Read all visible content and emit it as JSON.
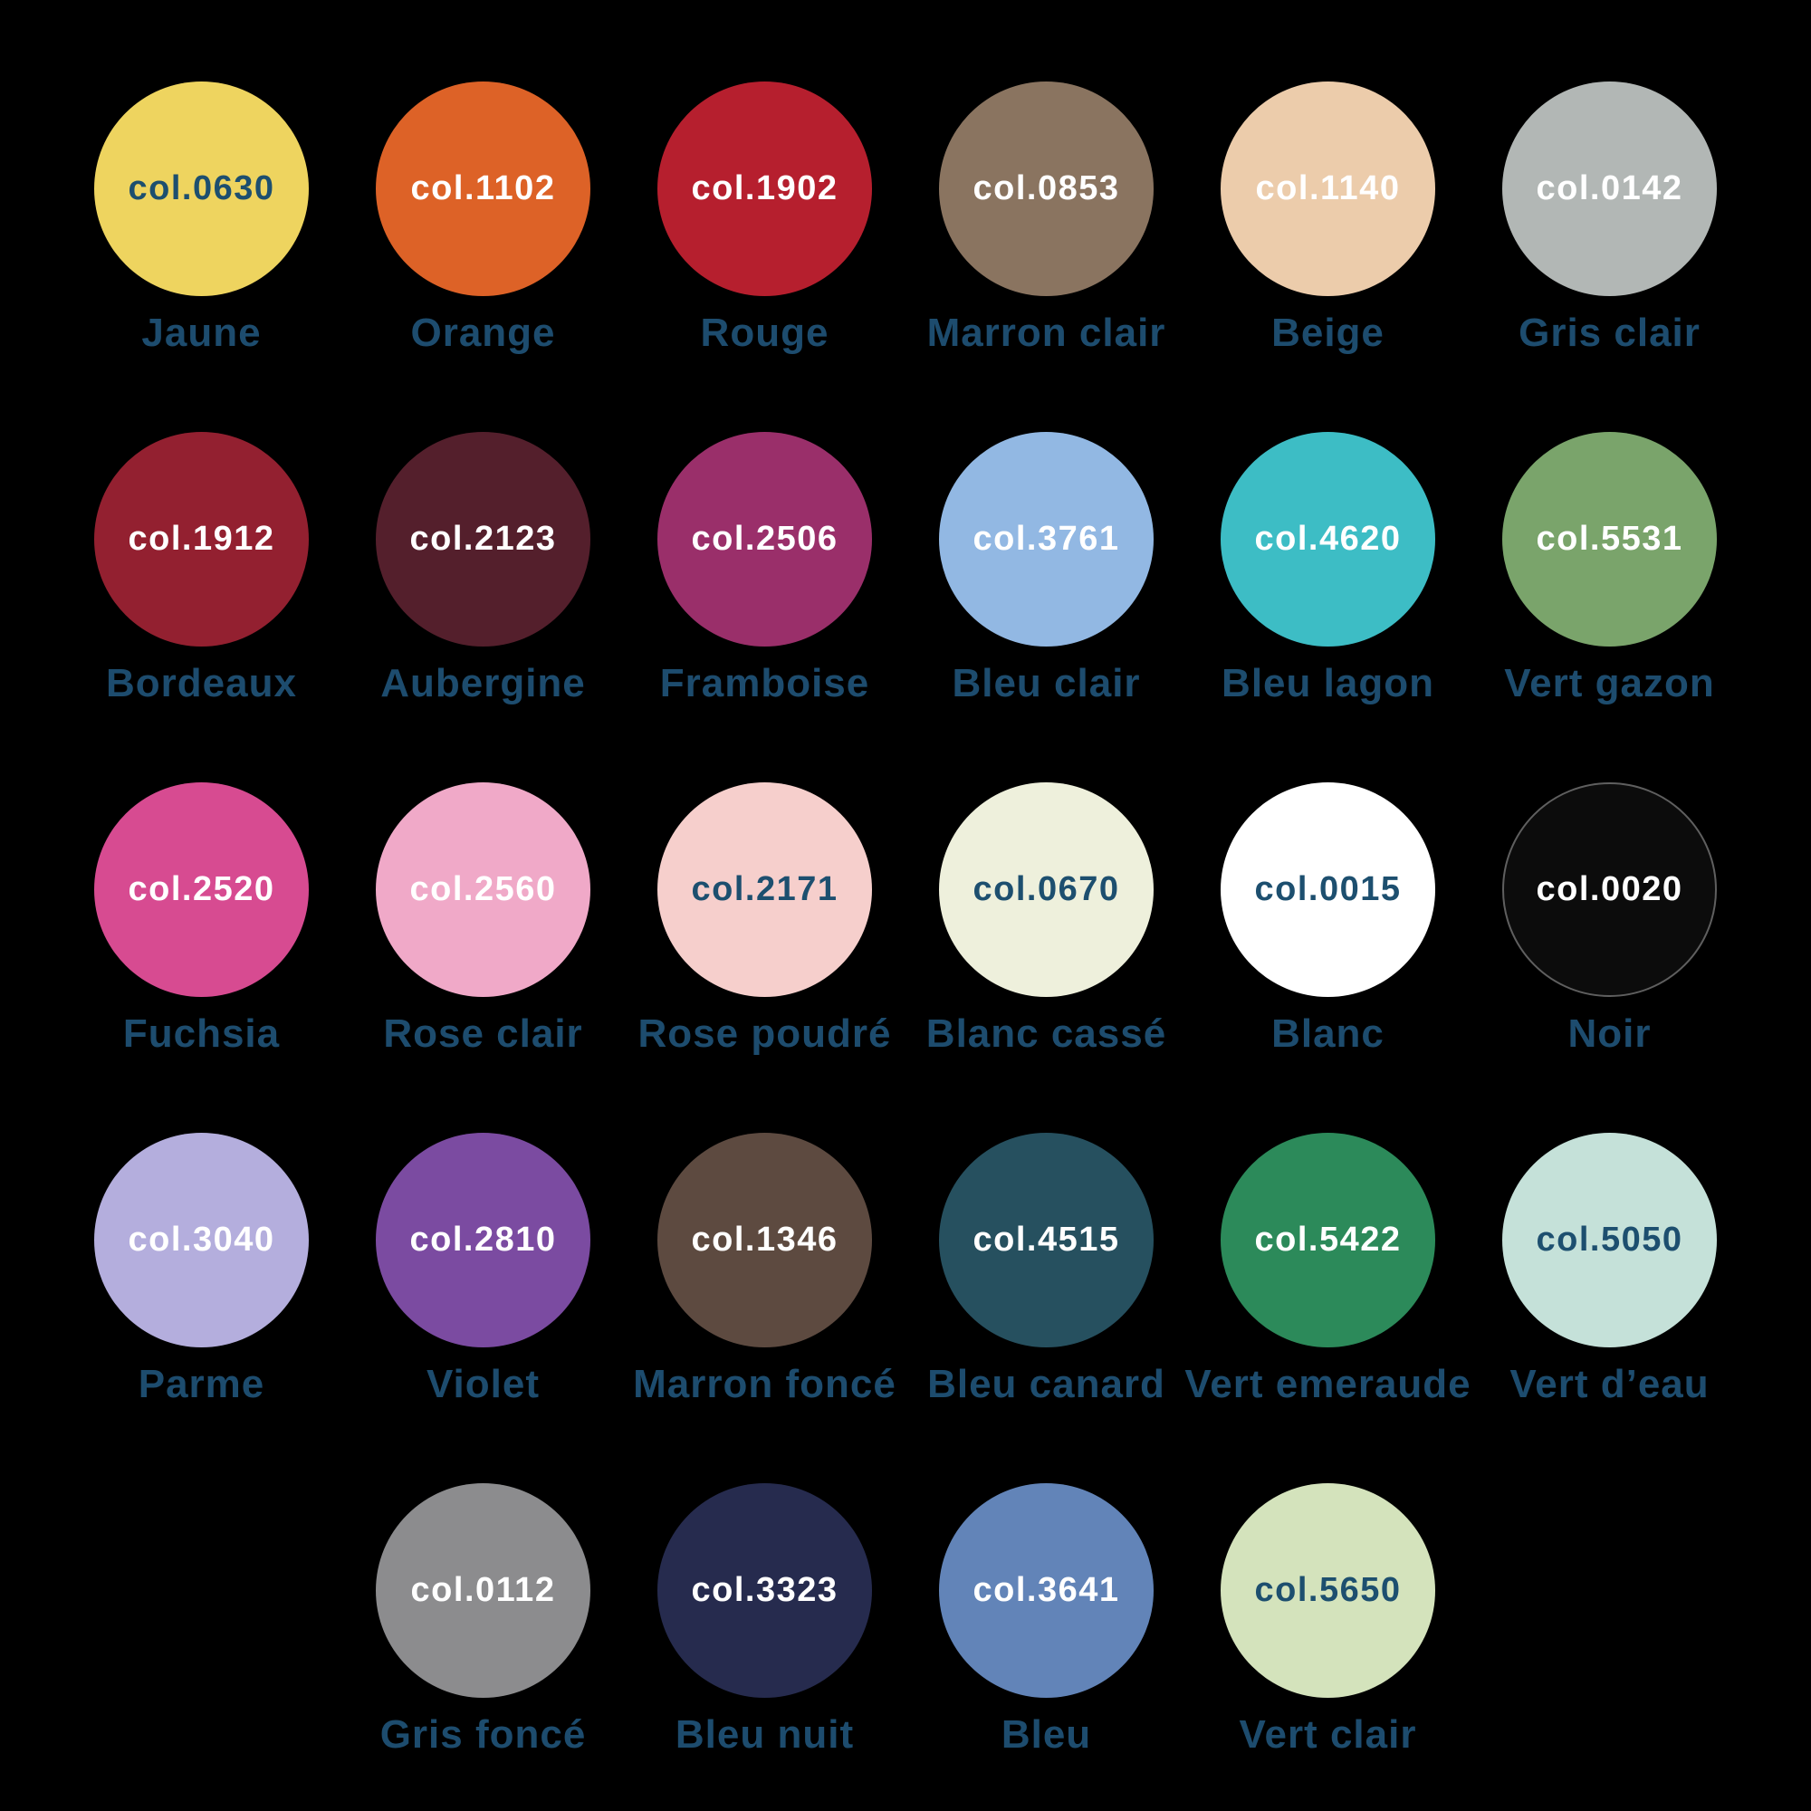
{
  "page": {
    "background": "#000000",
    "label_text_color": "#1d4c6e",
    "code_text_light": "#ffffff",
    "code_text_dark": "#1d4f6f"
  },
  "rows": [
    {
      "items": [
        {
          "code": "col.0630",
          "name": "Jaune",
          "color": "#eed45f",
          "text": "dark"
        },
        {
          "code": "col.1102",
          "name": "Orange",
          "color": "#dd6227",
          "text": "light"
        },
        {
          "code": "col.1902",
          "name": "Rouge",
          "color": "#b61f2e",
          "text": "light"
        },
        {
          "code": "col.0853",
          "name": "Marron clair",
          "color": "#8a7460",
          "text": "light"
        },
        {
          "code": "col.1140",
          "name": "Beige",
          "color": "#ecccab",
          "text": "light"
        },
        {
          "code": "col.0142",
          "name": "Gris clair",
          "color": "#b2b7b5",
          "text": "light"
        }
      ]
    },
    {
      "items": [
        {
          "code": "col.1912",
          "name": "Bordeaux",
          "color": "#932030",
          "text": "light"
        },
        {
          "code": "col.2123",
          "name": "Aubergine",
          "color": "#541f2c",
          "text": "light"
        },
        {
          "code": "col.2506",
          "name": "Framboise",
          "color": "#9a2f6a",
          "text": "light"
        },
        {
          "code": "col.3761",
          "name": "Bleu clair",
          "color": "#92b8e3",
          "text": "light"
        },
        {
          "code": "col.4620",
          "name": "Bleu lagon",
          "color": "#3dbdc5",
          "text": "light"
        },
        {
          "code": "col.5531",
          "name": "Vert gazon",
          "color": "#7aa46b",
          "text": "light"
        }
      ]
    },
    {
      "items": [
        {
          "code": "col.2520",
          "name": "Fuchsia",
          "color": "#d74b91",
          "text": "light"
        },
        {
          "code": "col.2560",
          "name": "Rose clair",
          "color": "#f0a9c8",
          "text": "light"
        },
        {
          "code": "col.2171",
          "name": "Rose poudré",
          "color": "#f6cfcc",
          "text": "dark"
        },
        {
          "code": "col.0670",
          "name": "Blanc cassé",
          "color": "#eef0dc",
          "text": "dark"
        },
        {
          "code": "col.0015",
          "name": "Blanc",
          "color": "#ffffff",
          "text": "dark"
        },
        {
          "code": "col.0020",
          "name": "Noir",
          "color": "#0c0c0c",
          "text": "light",
          "outlined": true
        }
      ]
    },
    {
      "items": [
        {
          "code": "col.3040",
          "name": "Parme",
          "color": "#b4aedd",
          "text": "light"
        },
        {
          "code": "col.2810",
          "name": "Violet",
          "color": "#7b4ba1",
          "text": "light"
        },
        {
          "code": "col.1346",
          "name": "Marron foncé",
          "color": "#5d4a40",
          "text": "light"
        },
        {
          "code": "col.4515",
          "name": "Bleu canard",
          "color": "#26505f",
          "text": "light"
        },
        {
          "code": "col.5422",
          "name": "Vert emeraude",
          "color": "#2c8a5a",
          "text": "light"
        },
        {
          "code": "col.5050",
          "name": "Vert d’eau",
          "color": "#c5e1d9",
          "text": "dark"
        }
      ]
    },
    {
      "items": [
        {
          "code": "col.0112",
          "name": "Gris foncé",
          "color": "#8c8c8e",
          "text": "light"
        },
        {
          "code": "col.3323",
          "name": "Bleu nuit",
          "color": "#262b4e",
          "text": "light"
        },
        {
          "code": "col.3641",
          "name": "Bleu",
          "color": "#6284b8",
          "text": "light"
        },
        {
          "code": "col.5650",
          "name": "Vert clair",
          "color": "#d4e3bc",
          "text": "dark"
        }
      ]
    }
  ]
}
